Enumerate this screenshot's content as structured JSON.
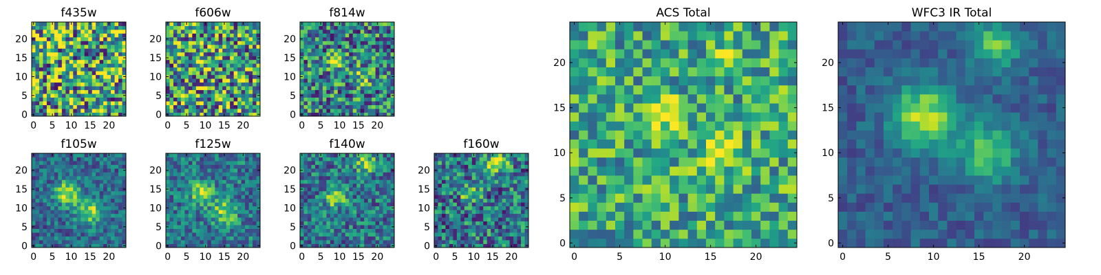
{
  "chart_data": [
    {
      "type": "heatmap",
      "title": "f435w",
      "size": 25,
      "seed": 11,
      "xticks": [
        0,
        5,
        10,
        15,
        20
      ],
      "yticks": [
        0,
        5,
        10,
        15,
        20
      ],
      "peak_value": 0.0,
      "noise": 0.55,
      "base": 0.6,
      "blobs": []
    },
    {
      "type": "heatmap",
      "title": "f606w",
      "size": 25,
      "seed": 23,
      "xticks": [
        0,
        5,
        10,
        15,
        20
      ],
      "yticks": [
        0,
        5,
        10,
        15,
        20
      ],
      "noise": 0.5,
      "base": 0.55,
      "blobs": [
        {
          "x": 9,
          "y": 14,
          "amp": 0.25,
          "sigma": 1.6
        }
      ]
    },
    {
      "type": "heatmap",
      "title": "f814w",
      "size": 25,
      "seed": 37,
      "xticks": [
        0,
        5,
        10,
        15,
        20
      ],
      "yticks": [
        0,
        5,
        10,
        15,
        20
      ],
      "noise": 0.4,
      "base": 0.45,
      "blobs": [
        {
          "x": 9,
          "y": 14,
          "amp": 0.45,
          "sigma": 1.4
        },
        {
          "x": 16,
          "y": 10,
          "amp": 0.35,
          "sigma": 1.6
        }
      ]
    },
    {
      "type": "heatmap",
      "title": "f105w",
      "size": 25,
      "seed": 41,
      "xticks": [
        0,
        5,
        10,
        15,
        20
      ],
      "yticks": [
        0,
        5,
        10,
        15,
        20
      ],
      "noise": 0.22,
      "base": 0.35,
      "blobs": [
        {
          "x": 9,
          "y": 14,
          "amp": 0.6,
          "sigma": 2.2
        },
        {
          "x": 15,
          "y": 9,
          "amp": 0.5,
          "sigma": 2.4
        }
      ]
    },
    {
      "type": "heatmap",
      "title": "f125w",
      "size": 25,
      "seed": 53,
      "xticks": [
        0,
        5,
        10,
        15,
        20
      ],
      "yticks": [
        0,
        5,
        10,
        15,
        20
      ],
      "noise": 0.25,
      "base": 0.4,
      "blobs": [
        {
          "x": 9,
          "y": 14,
          "amp": 0.5,
          "sigma": 2.0
        },
        {
          "x": 15,
          "y": 9,
          "amp": 0.45,
          "sigma": 2.2
        }
      ]
    },
    {
      "type": "heatmap",
      "title": "f140w",
      "size": 25,
      "seed": 67,
      "xticks": [
        0,
        5,
        10,
        15,
        20
      ],
      "yticks": [
        0,
        5,
        10,
        15,
        20
      ],
      "noise": 0.28,
      "base": 0.4,
      "blobs": [
        {
          "x": 9,
          "y": 13,
          "amp": 0.55,
          "sigma": 1.8
        },
        {
          "x": 17,
          "y": 22,
          "amp": 0.4,
          "sigma": 2.0
        }
      ]
    },
    {
      "type": "heatmap",
      "title": "f160w",
      "size": 25,
      "seed": 79,
      "xticks": [
        0,
        5,
        10,
        15,
        20
      ],
      "yticks": [
        0,
        5,
        10,
        15,
        20
      ],
      "noise": 0.35,
      "base": 0.4,
      "blobs": [
        {
          "x": 9,
          "y": 14,
          "amp": 0.45,
          "sigma": 1.6
        },
        {
          "x": 16,
          "y": 22,
          "amp": 0.5,
          "sigma": 2.0
        }
      ]
    },
    {
      "type": "heatmap",
      "title": "ACS Total",
      "size": 25,
      "seed": 97,
      "xticks": [
        0,
        5,
        10,
        15,
        20
      ],
      "yticks": [
        0,
        5,
        10,
        15,
        20
      ],
      "noise": 0.3,
      "base": 0.6,
      "blobs": [
        {
          "x": 10,
          "y": 14,
          "amp": 0.4,
          "sigma": 1.3
        },
        {
          "x": 16,
          "y": 10,
          "amp": 0.3,
          "sigma": 1.5
        },
        {
          "x": 17,
          "y": 21,
          "amp": 0.25,
          "sigma": 1.0
        }
      ]
    },
    {
      "type": "heatmap",
      "title": "WFC3 IR Total",
      "size": 25,
      "seed": 113,
      "xticks": [
        0,
        5,
        10,
        15,
        20
      ],
      "yticks": [
        0,
        5,
        10,
        15,
        20
      ],
      "noise": 0.12,
      "base": 0.3,
      "blobs": [
        {
          "x": 9,
          "y": 14,
          "amp": 0.6,
          "sigma": 2.4
        },
        {
          "x": 16,
          "y": 10,
          "amp": 0.45,
          "sigma": 2.2
        },
        {
          "x": 17,
          "y": 22,
          "amp": 0.45,
          "sigma": 1.8
        }
      ]
    }
  ],
  "colormap": "viridis"
}
